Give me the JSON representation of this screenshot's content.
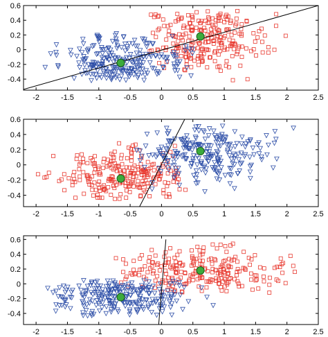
{
  "colors": {
    "class_red": "#e8382e",
    "class_blue": "#2e4fa8",
    "centroid_fill": "#3cab3c",
    "centroid_stroke": "#1a5e1a",
    "boundary": "#000000",
    "axes": "#000000"
  },
  "chart_data": [
    {
      "type": "scatter",
      "panel": "top",
      "xlim": [
        -2.2,
        2.5
      ],
      "ylim": [
        -0.55,
        0.6
      ],
      "x_ticks": [
        "-2",
        "-1.5",
        "-1",
        "-0.5",
        "0",
        "0.5",
        "1",
        "1.5",
        "2",
        "2.5"
      ],
      "y_ticks": [
        "0.6",
        "0.4",
        "0.2",
        "0",
        "-0.2",
        "-0.4"
      ],
      "clusters": [
        {
          "marker": "square",
          "color": "red",
          "x_range": [
            -0.2,
            2.2
          ],
          "y_range": [
            -0.45,
            0.55
          ],
          "center": [
            0.62,
            0.18
          ],
          "count": 250
        },
        {
          "marker": "triangle-down",
          "color": "blue",
          "x_range": [
            -1.9,
            0.5
          ],
          "y_range": [
            -0.42,
            0.33
          ],
          "center": [
            -0.65,
            -0.18
          ],
          "count": 250
        }
      ],
      "centroids": [
        [
          0.62,
          0.18
        ],
        [
          -0.65,
          -0.18
        ]
      ],
      "boundary_line": {
        "x1": -2.2,
        "y1": -0.54,
        "x2": 2.5,
        "y2": 0.6
      }
    },
    {
      "type": "scatter",
      "panel": "middle",
      "xlim": [
        -2.2,
        2.5
      ],
      "ylim": [
        -0.55,
        0.6
      ],
      "x_ticks": [
        "-2",
        "-1.5",
        "-1",
        "-0.5",
        "0",
        "0.5",
        "1",
        "1.5",
        "2",
        "2.5"
      ],
      "y_ticks": [
        "0.6",
        "0.4",
        "0.2",
        "0",
        "-0.2",
        "-0.4"
      ],
      "clusters": [
        {
          "marker": "square",
          "color": "red",
          "x_range": [
            -2.0,
            0.4
          ],
          "y_range": [
            -0.45,
            0.3
          ],
          "center": [
            -0.65,
            -0.18
          ],
          "count": 250
        },
        {
          "marker": "triangle-down",
          "color": "blue",
          "x_range": [
            -0.4,
            2.2
          ],
          "y_range": [
            -0.35,
            0.52
          ],
          "center": [
            0.62,
            0.18
          ],
          "count": 250
        }
      ],
      "centroids": [
        [
          0.62,
          0.18
        ],
        [
          -0.65,
          -0.18
        ]
      ],
      "boundary_line": {
        "x1": -0.35,
        "y1": -0.55,
        "x2": 0.37,
        "y2": 0.6
      }
    },
    {
      "type": "scatter",
      "panel": "bottom",
      "xlim": [
        -2.2,
        2.5
      ],
      "ylim": [
        -0.55,
        0.65
      ],
      "x_ticks": [
        "-2",
        "-1.5",
        "-1",
        "-0.5",
        "0",
        "0.5",
        "1",
        "1.5",
        "2",
        "2.5"
      ],
      "y_ticks": [
        "0.6",
        "0.4",
        "0.2",
        "0",
        "-0.2",
        "-0.4"
      ],
      "clusters": [
        {
          "marker": "square",
          "color": "red",
          "x_range": [
            -0.9,
            2.2
          ],
          "y_range": [
            -0.15,
            0.55
          ],
          "center": [
            0.62,
            0.18
          ],
          "count": 250
        },
        {
          "marker": "triangle-down",
          "color": "blue",
          "x_range": [
            -1.9,
            0.9
          ],
          "y_range": [
            -0.45,
            0.05
          ],
          "center": [
            -0.65,
            -0.18
          ],
          "count": 250
        }
      ],
      "centroids": [
        [
          0.62,
          0.18
        ],
        [
          -0.65,
          -0.18
        ]
      ],
      "boundary_line": {
        "x1": -0.05,
        "y1": -0.6,
        "x2": 0.07,
        "y2": 0.6
      }
    }
  ]
}
